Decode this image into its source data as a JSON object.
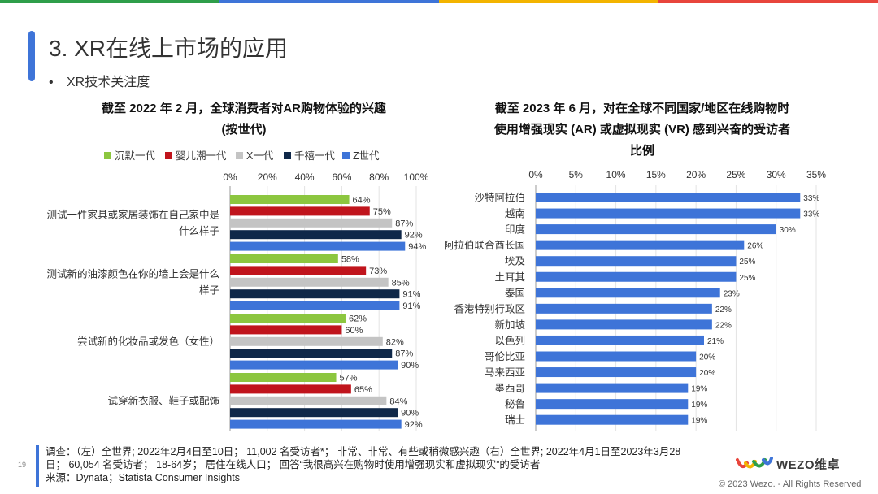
{
  "colors": {
    "top_bar": [
      "#2f9e4a",
      "#3e74d8",
      "#f3b400",
      "#e8453c"
    ],
    "accent": "#3e74d8"
  },
  "page": {
    "title": "3. XR在线上市场的应用",
    "bullet": "XR技术关注度"
  },
  "chart_data": [
    {
      "type": "bar",
      "orientation": "horizontal",
      "title_lines": [
        "截至 2022 年 2 月，全球消费者对AR购物体验的兴趣",
        "(按世代)"
      ],
      "categories": [
        [
          "测试一件家具或家居装饰在自己家中是",
          "什么样子"
        ],
        [
          "测试新的油漆颜色在你的墙上会是什么",
          "样子"
        ],
        [
          "尝试新的化妆品或发色（女性）"
        ],
        [
          "试穿新衣服、鞋子或配饰"
        ]
      ],
      "series": [
        {
          "name": "沉默一代",
          "color": "#8cc63f",
          "values": [
            64,
            58,
            62,
            57
          ]
        },
        {
          "name": "婴儿潮一代",
          "color": "#c0141c",
          "values": [
            75,
            73,
            60,
            65
          ]
        },
        {
          "name": "X一代",
          "color": "#c4c4c4",
          "values": [
            87,
            85,
            82,
            84
          ]
        },
        {
          "name": "千禧一代",
          "color": "#0f2849",
          "values": [
            92,
            91,
            87,
            90
          ]
        },
        {
          "name": "Z世代",
          "color": "#3e74d8",
          "values": [
            94,
            91,
            90,
            92
          ]
        }
      ],
      "x_ticks": [
        0,
        20,
        40,
        60,
        80,
        100
      ],
      "xlim": [
        0,
        100
      ],
      "unit": "%",
      "legend": "top",
      "grid": true
    },
    {
      "type": "bar",
      "orientation": "horizontal",
      "title_lines": [
        "截至 2023 年 6 月，对在全球不同国家/地区在线购物时",
        "使用增强现实 (AR) 或虚拟现实 (VR) 感到兴奋的受访者",
        "比例"
      ],
      "categories": [
        "沙特阿拉伯",
        "越南",
        "印度",
        "阿拉伯联合酋长国",
        "埃及",
        "土耳其",
        "泰国",
        "香港特别行政区",
        "新加坡",
        "以色列",
        "哥伦比亚",
        "马来西亚",
        "墨西哥",
        "秘鲁",
        "瑞士"
      ],
      "values": [
        33,
        33,
        30,
        26,
        25,
        25,
        23,
        22,
        22,
        21,
        20,
        20,
        19,
        19,
        19
      ],
      "color": "#3e74d8",
      "x_ticks": [
        0,
        5,
        10,
        15,
        20,
        25,
        30,
        35
      ],
      "xlim": [
        0,
        35
      ],
      "unit": "%",
      "grid": true
    }
  ],
  "footer": {
    "lines": [
      "调查：（左）全世界; 2022年2月4日至10日； 11,002 名受访者*； 非常、非常、有些或稍微感兴趣（右）全世界; 2022年4月1日至2023年3月28",
      "日； 60,054 名受访者； 18-64岁； 居住在线人口； 回答“我很高兴在购物时使用增强现实和虚拟现实”的受访者",
      "来源：Dynata；Statista Consumer Insights"
    ]
  },
  "page_number": "19",
  "logo": {
    "text": "WEZO维卓"
  },
  "copyright": "© 2023 Wezo. - All Rights Reserved"
}
